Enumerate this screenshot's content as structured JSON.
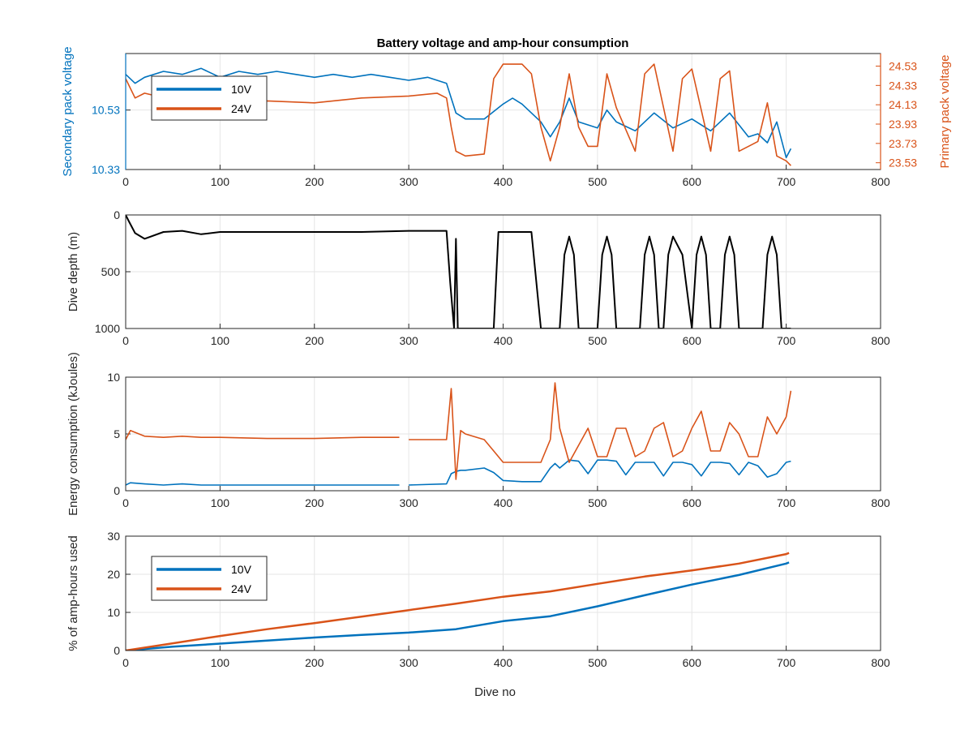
{
  "figure_title": "Battery voltage and amp-hour consumption",
  "colors": {
    "blue": "#0072BD",
    "orange": "#D95319",
    "black": "#000000",
    "axis": "#262626",
    "grid": "#e6e6e6"
  },
  "chart_data": [
    {
      "type": "line",
      "title": "Battery voltage and amp-hour consumption",
      "xlabel": "",
      "ylabel": "Secondary pack voltage",
      "ylabel_right": "Primary pack voltage",
      "xlim": [
        0,
        800
      ],
      "x_ticks": [
        "0",
        "100",
        "200",
        "300",
        "400",
        "500",
        "600",
        "700",
        "800"
      ],
      "ylim_left": [
        10.33,
        10.72
      ],
      "y_ticks_left": [
        "10.33",
        "10.53"
      ],
      "ylim_right": [
        23.46,
        24.66
      ],
      "y_ticks_right": [
        "23.53",
        "23.73",
        "23.93",
        "24.13",
        "24.33",
        "24.53"
      ],
      "grid": true,
      "legend": {
        "position": "top-left",
        "entries": [
          "10V",
          "24V"
        ]
      },
      "series": [
        {
          "name": "10V",
          "axis": "left",
          "color": "#0072BD",
          "x": [
            0,
            10,
            20,
            40,
            60,
            80,
            100,
            120,
            140,
            160,
            180,
            200,
            220,
            240,
            260,
            280,
            300,
            320,
            340,
            346,
            350,
            360,
            380,
            400,
            410,
            420,
            440,
            450,
            460,
            470,
            480,
            500,
            510,
            520,
            540,
            560,
            580,
            600,
            620,
            640,
            660,
            670,
            680,
            690,
            700,
            705
          ],
          "y": [
            10.65,
            10.62,
            10.64,
            10.66,
            10.65,
            10.67,
            10.64,
            10.66,
            10.65,
            10.66,
            10.65,
            10.64,
            10.65,
            10.64,
            10.65,
            10.64,
            10.63,
            10.64,
            10.62,
            10.56,
            10.52,
            10.5,
            10.5,
            10.55,
            10.57,
            10.55,
            10.49,
            10.44,
            10.49,
            10.57,
            10.49,
            10.47,
            10.53,
            10.49,
            10.46,
            10.52,
            10.47,
            10.5,
            10.46,
            10.52,
            10.44,
            10.45,
            10.42,
            10.49,
            10.37,
            10.4
          ]
        },
        {
          "name": "24V",
          "axis": "right",
          "color": "#D95319",
          "x": [
            0,
            10,
            20,
            50,
            100,
            150,
            200,
            250,
            300,
            330,
            340,
            345,
            350,
            360,
            380,
            390,
            400,
            420,
            430,
            440,
            450,
            460,
            470,
            480,
            490,
            500,
            510,
            520,
            540,
            550,
            560,
            580,
            590,
            600,
            620,
            630,
            640,
            650,
            660,
            670,
            680,
            690,
            700,
            705
          ],
          "y": [
            24.4,
            24.2,
            24.25,
            24.18,
            24.15,
            24.17,
            24.15,
            24.2,
            24.22,
            24.25,
            24.2,
            23.9,
            23.65,
            23.6,
            23.62,
            24.4,
            24.55,
            24.55,
            24.45,
            23.9,
            23.55,
            23.9,
            24.45,
            23.9,
            23.7,
            23.7,
            24.45,
            24.1,
            23.65,
            24.45,
            24.55,
            23.65,
            24.4,
            24.5,
            23.65,
            24.4,
            24.48,
            23.65,
            23.7,
            23.75,
            24.15,
            23.6,
            23.55,
            23.5
          ]
        }
      ]
    },
    {
      "type": "line",
      "title": "",
      "xlabel": "",
      "ylabel": "Dive depth (m)",
      "xlim": [
        0,
        800
      ],
      "x_ticks": [
        "0",
        "100",
        "200",
        "300",
        "400",
        "500",
        "600",
        "700",
        "800"
      ],
      "ylim": [
        0,
        1000
      ],
      "y_reversed": true,
      "y_ticks": [
        "0",
        "500",
        "1000"
      ],
      "grid": true,
      "series": [
        {
          "name": "",
          "color": "#000000",
          "x": [
            0,
            3,
            10,
            20,
            40,
            60,
            80,
            100,
            150,
            200,
            250,
            300,
            340,
            344,
            348,
            350,
            352,
            356,
            360,
            380,
            390,
            395,
            400,
            420,
            430,
            440,
            445,
            450,
            460,
            465,
            470,
            475,
            480,
            485,
            490,
            500,
            505,
            510,
            515,
            520,
            530,
            545,
            550,
            555,
            560,
            565,
            570,
            575,
            580,
            590,
            600,
            605,
            610,
            615,
            620,
            625,
            630,
            635,
            640,
            645,
            650,
            660,
            670,
            675,
            680,
            685,
            690,
            695,
            700,
            705
          ],
          "y": [
            0,
            50,
            160,
            210,
            150,
            140,
            170,
            150,
            150,
            150,
            150,
            140,
            140,
            600,
            1000,
            210,
            1000,
            1000,
            1000,
            1000,
            1000,
            150,
            150,
            150,
            150,
            1000,
            1000,
            1000,
            1000,
            350,
            190,
            350,
            1000,
            1000,
            1000,
            1000,
            350,
            190,
            350,
            1000,
            1000,
            1000,
            350,
            190,
            350,
            1000,
            1000,
            350,
            190,
            350,
            1000,
            350,
            190,
            350,
            1000,
            1000,
            1000,
            350,
            190,
            350,
            1000,
            1000,
            1000,
            1000,
            350,
            190,
            350,
            1000,
            1000,
            1000
          ]
        }
      ]
    },
    {
      "type": "line",
      "title": "",
      "xlabel": "",
      "ylabel": "Energy consumption (kJoules)",
      "xlim": [
        0,
        800
      ],
      "x_ticks": [
        "0",
        "100",
        "200",
        "300",
        "400",
        "500",
        "600",
        "700",
        "800"
      ],
      "ylim": [
        0,
        10
      ],
      "y_ticks": [
        "0",
        "5",
        "10"
      ],
      "grid": true,
      "series": [
        {
          "name": "10V",
          "color": "#0072BD",
          "x": [
            0,
            5,
            20,
            40,
            60,
            80,
            100,
            150,
            200,
            250,
            290,
            295,
            300,
            340,
            345,
            350,
            355,
            360,
            380,
            390,
            400,
            420,
            440,
            450,
            455,
            460,
            470,
            480,
            490,
            500,
            510,
            520,
            530,
            540,
            550,
            560,
            570,
            580,
            590,
            600,
            610,
            620,
            630,
            640,
            650,
            660,
            670,
            680,
            690,
            700,
            705
          ],
          "y": [
            0.5,
            0.7,
            0.6,
            0.5,
            0.6,
            0.5,
            0.5,
            0.5,
            0.5,
            0.5,
            0.5,
            null,
            0.5,
            0.6,
            1.5,
            1.7,
            1.8,
            1.8,
            2.0,
            1.6,
            0.9,
            0.8,
            0.8,
            2.0,
            2.4,
            2.0,
            2.7,
            2.6,
            1.5,
            2.7,
            2.7,
            2.6,
            1.4,
            2.5,
            2.5,
            2.5,
            1.3,
            2.5,
            2.5,
            2.3,
            1.3,
            2.5,
            2.5,
            2.4,
            1.4,
            2.5,
            2.2,
            1.2,
            1.5,
            2.5,
            2.6
          ]
        },
        {
          "name": "24V",
          "color": "#D95319",
          "x": [
            0,
            5,
            20,
            40,
            60,
            80,
            100,
            150,
            200,
            250,
            290,
            295,
            300,
            340,
            345,
            350,
            355,
            360,
            380,
            390,
            400,
            420,
            440,
            450,
            455,
            460,
            470,
            480,
            490,
            500,
            510,
            520,
            530,
            540,
            550,
            560,
            570,
            580,
            590,
            600,
            610,
            620,
            630,
            640,
            650,
            660,
            670,
            680,
            690,
            700,
            705
          ],
          "y": [
            4.5,
            5.3,
            4.8,
            4.7,
            4.8,
            4.7,
            4.7,
            4.6,
            4.6,
            4.7,
            4.7,
            null,
            4.5,
            4.5,
            9.0,
            1.0,
            5.3,
            5.0,
            4.5,
            3.5,
            2.5,
            2.5,
            2.5,
            4.5,
            9.5,
            5.5,
            2.5,
            4.0,
            5.5,
            3.0,
            3.0,
            5.5,
            5.5,
            3.0,
            3.5,
            5.5,
            6.0,
            3.0,
            3.5,
            5.5,
            7.0,
            3.5,
            3.5,
            6.0,
            5.0,
            3.0,
            3.0,
            6.5,
            5.0,
            6.5,
            8.8
          ]
        }
      ]
    },
    {
      "type": "line",
      "title": "",
      "xlabel": "Dive no",
      "ylabel": "% of amp-hours used",
      "xlim": [
        0,
        800
      ],
      "x_ticks": [
        "0",
        "100",
        "200",
        "300",
        "400",
        "500",
        "600",
        "700",
        "800"
      ],
      "ylim": [
        0,
        30
      ],
      "y_ticks": [
        "0",
        "10",
        "20",
        "30"
      ],
      "grid": true,
      "legend": {
        "position": "top-left",
        "entries": [
          "10V",
          "24V"
        ]
      },
      "series": [
        {
          "name": "10V",
          "color": "#0072BD",
          "x": [
            0,
            50,
            100,
            150,
            200,
            250,
            300,
            350,
            400,
            450,
            500,
            550,
            600,
            650,
            700,
            703
          ],
          "y": [
            0,
            1.0,
            1.8,
            2.6,
            3.4,
            4.1,
            4.7,
            5.6,
            7.7,
            9.0,
            11.6,
            14.5,
            17.3,
            19.8,
            22.8,
            23.1
          ]
        },
        {
          "name": "24V",
          "color": "#D95319",
          "x": [
            0,
            50,
            100,
            150,
            200,
            250,
            300,
            350,
            400,
            450,
            500,
            550,
            600,
            650,
            700,
            703
          ],
          "y": [
            0,
            1.9,
            3.8,
            5.6,
            7.2,
            8.9,
            10.6,
            12.3,
            14.1,
            15.5,
            17.5,
            19.4,
            21.0,
            22.8,
            25.3,
            25.6
          ]
        }
      ]
    }
  ]
}
